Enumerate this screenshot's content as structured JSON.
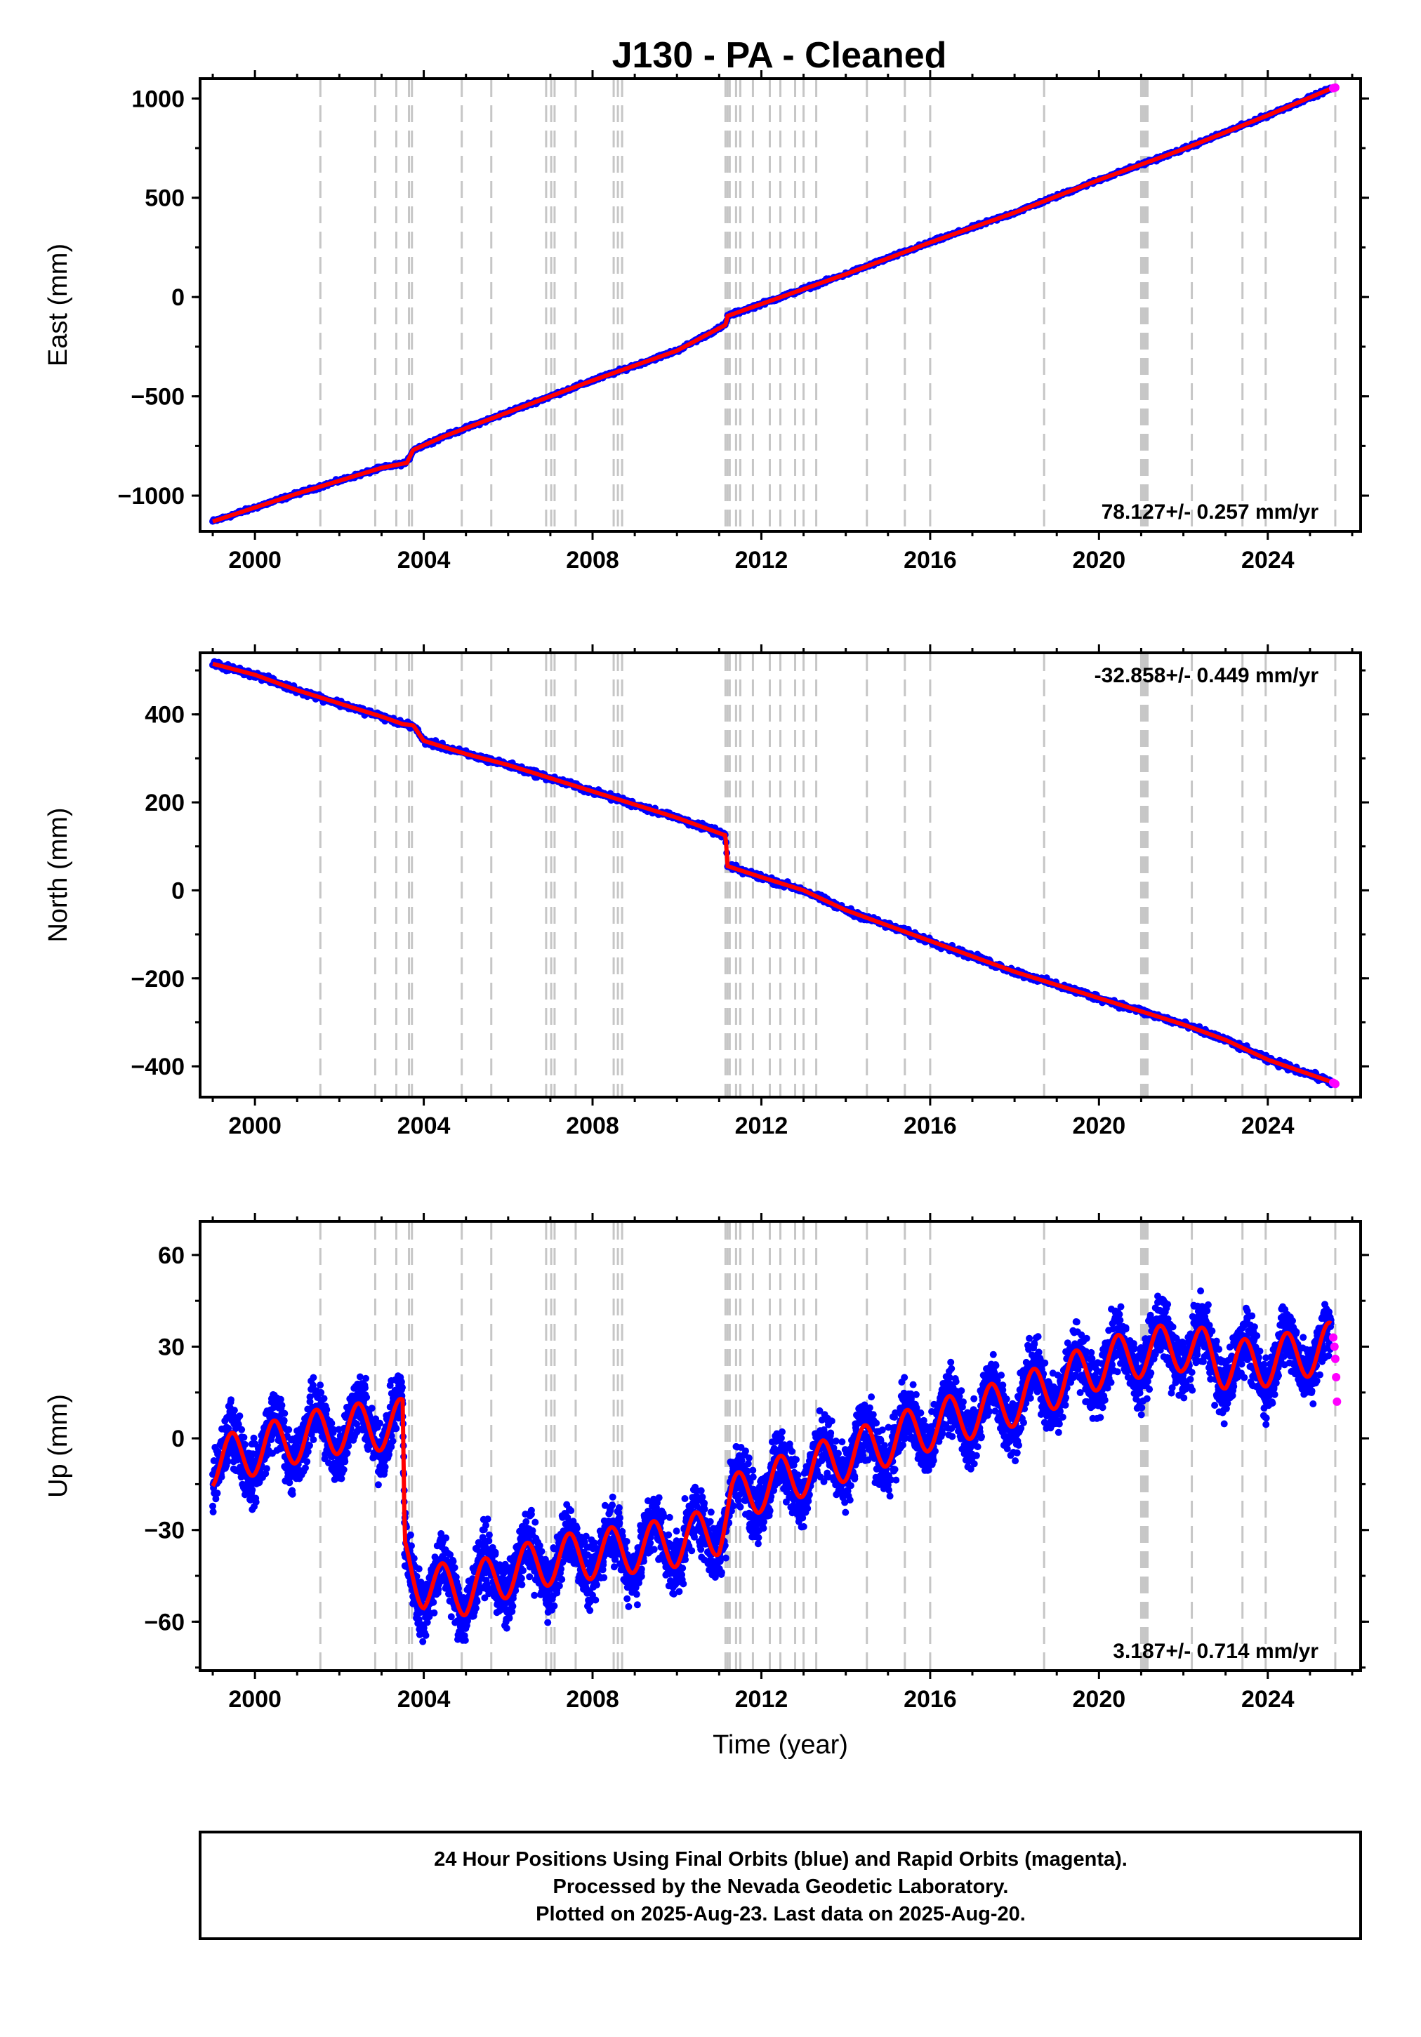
{
  "title": "J130  - PA - Cleaned",
  "colors": {
    "final_orbits": "#0000ff",
    "rapid_orbits": "#ff00ff",
    "model": "#ff0000",
    "event_lines": "#c6c6c6",
    "frame": "#000000"
  },
  "footer": {
    "line1": "24 Hour Positions Using Final Orbits (blue) and Rapid Orbits (magenta).",
    "line2": "Processed by the Nevada Geodetic Laboratory.",
    "line3": "Plotted on 2025-Aug-23. Last data on 2025-Aug-20."
  },
  "chart_data": [
    {
      "type": "scatter",
      "component": "East",
      "ylabel": "East (mm)",
      "xlabel": "",
      "xlim": [
        1998.7,
        2026.2
      ],
      "ylim": [
        -1180,
        1100
      ],
      "x_ticks": [
        2000,
        2004,
        2008,
        2012,
        2016,
        2020,
        2024
      ],
      "y_ticks": [
        -1000,
        -500,
        0,
        500,
        1000
      ],
      "y_tick_labels": [
        "−1000",
        "−500",
        "0",
        "500",
        "1000"
      ],
      "rate_label": "78.127+/- 0.257 mm/yr",
      "rate_position": "bottom-right",
      "series": [
        {
          "role": "final",
          "x": [
            1999.0,
            2001.0,
            2003.0,
            2003.6,
            2003.75,
            2004.5,
            2006.0,
            2008.0,
            2010.0,
            2011.15,
            2011.2,
            2012.0,
            2014.0,
            2016.0,
            2018.0,
            2020.0,
            2022.0,
            2024.0,
            2025.5
          ],
          "y": [
            -1130,
            -990,
            -860,
            -835,
            -770,
            -700,
            -580,
            -420,
            -270,
            -140,
            -95,
            -35,
            115,
            275,
            425,
            590,
            745,
            915,
            1050
          ]
        },
        {
          "role": "rapid",
          "x": [
            2025.55,
            2025.6
          ],
          "y": [
            1052,
            1055
          ]
        }
      ]
    },
    {
      "type": "scatter",
      "component": "North",
      "ylabel": "North (mm)",
      "xlabel": "",
      "xlim": [
        1998.7,
        2026.2
      ],
      "ylim": [
        -470,
        540
      ],
      "x_ticks": [
        2000,
        2004,
        2008,
        2012,
        2016,
        2020,
        2024
      ],
      "y_ticks": [
        -400,
        -200,
        0,
        200,
        400
      ],
      "y_tick_labels": [
        "−400",
        "−200",
        "0",
        "200",
        "400"
      ],
      "rate_label": "-32.858+/- 0.449 mm/yr",
      "rate_position": "top-right",
      "series": [
        {
          "role": "final",
          "x": [
            1999.0,
            2000.0,
            2001.0,
            2002.0,
            2003.0,
            2003.5,
            2003.75,
            2004.0,
            2005.0,
            2006.0,
            2007.0,
            2008.0,
            2009.0,
            2010.0,
            2011.15,
            2011.2,
            2012.0,
            2013.0,
            2014.0,
            2015.0,
            2016.0,
            2017.0,
            2018.0,
            2019.0,
            2020.0,
            2021.0,
            2022.0,
            2023.0,
            2024.0,
            2025.5
          ],
          "y": [
            515,
            490,
            455,
            425,
            395,
            378,
            375,
            340,
            310,
            285,
            255,
            225,
            195,
            165,
            125,
            55,
            30,
            0,
            -45,
            -80,
            -115,
            -150,
            -185,
            -215,
            -245,
            -275,
            -305,
            -340,
            -385,
            -435
          ]
        },
        {
          "role": "rapid",
          "x": [
            2025.55,
            2025.6
          ],
          "y": [
            -437,
            -440
          ]
        }
      ]
    },
    {
      "type": "scatter",
      "component": "Up",
      "ylabel": "Up (mm)",
      "xlabel": "Time (year)",
      "xlim": [
        1998.7,
        2026.2
      ],
      "ylim": [
        -76,
        71
      ],
      "x_ticks": [
        2000,
        2004,
        2008,
        2012,
        2016,
        2020,
        2024
      ],
      "y_ticks": [
        -60,
        -30,
        0,
        30,
        60
      ],
      "y_tick_labels": [
        "−60",
        "−30",
        "0",
        "30",
        "60"
      ],
      "rate_label": "3.187+/- 0.714 mm/yr",
      "rate_position": "bottom-right",
      "series": [
        {
          "role": "final",
          "x": [
            1999.0,
            2000.0,
            2001.0,
            2002.0,
            2003.0,
            2003.5,
            2003.55,
            2004.0,
            2005.0,
            2006.0,
            2007.0,
            2008.0,
            2009.0,
            2010.0,
            2011.0,
            2011.3,
            2012.0,
            2013.0,
            2014.0,
            2015.0,
            2016.0,
            2017.0,
            2018.0,
            2019.0,
            2020.0,
            2021.0,
            2022.0,
            2022.5,
            2023.0,
            2024.0,
            2025.5
          ],
          "y": [
            -8,
            -4,
            0,
            3,
            4,
            5,
            -40,
            -48,
            -50,
            -44,
            -40,
            -38,
            -36,
            -34,
            -30,
            -20,
            -16,
            -11,
            -6,
            -1,
            4,
            8,
            12,
            18,
            24,
            28,
            30,
            28,
            24,
            25,
            30
          ]
        },
        {
          "role": "rapid",
          "x": [
            2025.55,
            2025.58,
            2025.6,
            2025.62,
            2025.64
          ],
          "y": [
            33,
            30,
            26,
            20,
            12
          ]
        }
      ]
    }
  ],
  "event_years": [
    2001.55,
    2002.85,
    2003.35,
    2003.65,
    2003.72,
    2004.9,
    2005.6,
    2006.9,
    2007.02,
    2007.1,
    2007.6,
    2008.5,
    2008.6,
    2008.7,
    2011.15,
    2011.2,
    2011.25,
    2011.4,
    2011.5,
    2011.8,
    2012.2,
    2012.45,
    2012.8,
    2013.0,
    2013.3,
    2014.5,
    2015.4,
    2016.0,
    2018.7,
    2021.0,
    2021.05,
    2021.1,
    2021.15,
    2022.2,
    2023.4,
    2023.95,
    2025.6
  ]
}
